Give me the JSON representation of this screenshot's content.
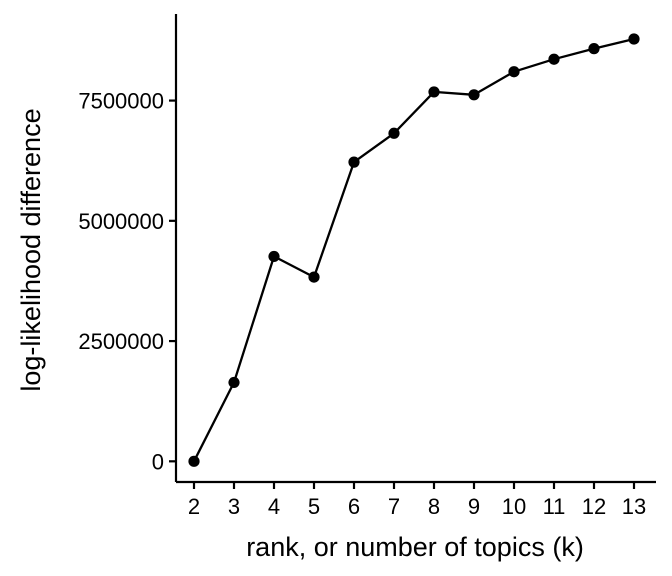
{
  "chart_data": {
    "type": "line",
    "xlabel": "rank, or number of topics (k)",
    "ylabel": "log-likelihood difference",
    "x": [
      2,
      3,
      4,
      5,
      6,
      7,
      8,
      9,
      10,
      11,
      12,
      13
    ],
    "series": [
      {
        "values": [
          0,
          1640000,
          4260000,
          3830000,
          6220000,
          6820000,
          7680000,
          7620000,
          8100000,
          8360000,
          8580000,
          8780000
        ]
      }
    ],
    "xticks": [
      "2",
      "3",
      "4",
      "5",
      "6",
      "7",
      "8",
      "9",
      "10",
      "11",
      "12",
      "13"
    ],
    "yticks": [
      0,
      2500000,
      5000000,
      7500000
    ],
    "ytick_labels": [
      "0",
      "2500000",
      "5000000",
      "7500000"
    ],
    "xlim": [
      1.55,
      13.55
    ],
    "ylim": [
      -430000,
      9300000
    ],
    "grid": false,
    "legend": "none",
    "colors": {
      "line": "#000000",
      "point": "#000000",
      "axis": "#000000"
    }
  }
}
